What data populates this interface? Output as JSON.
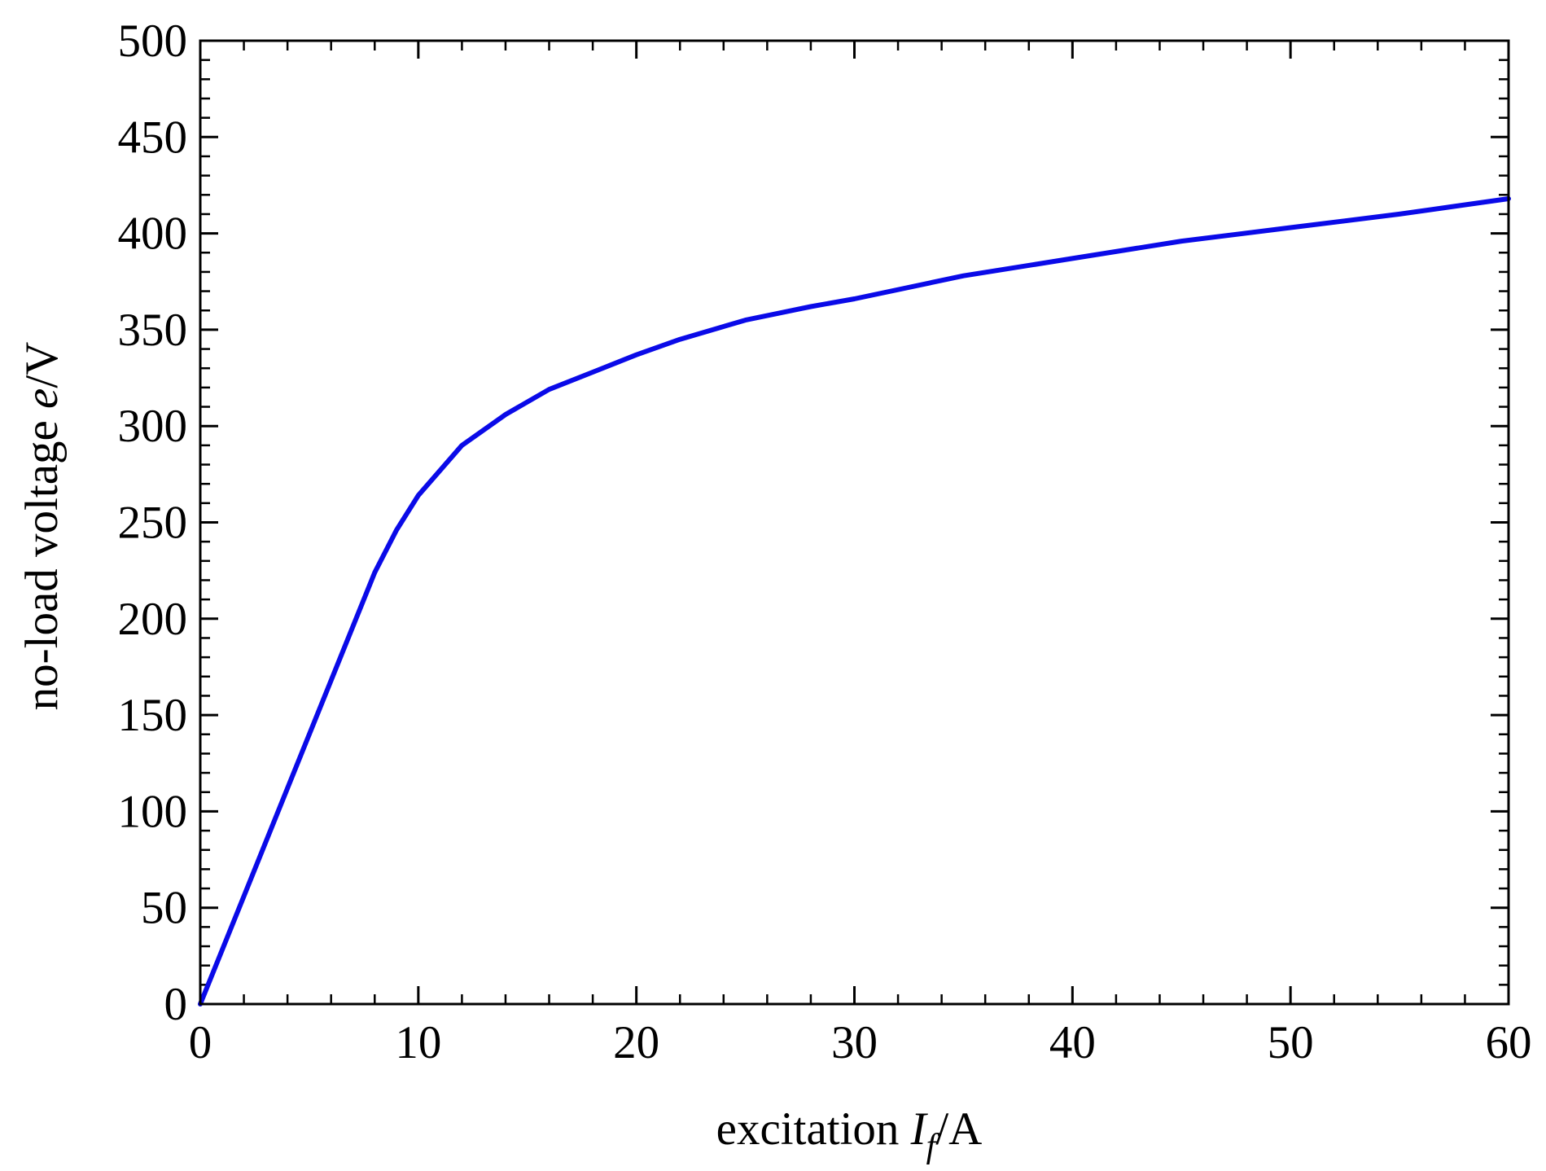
{
  "chart_data": {
    "type": "line",
    "xlabel": {
      "prefix": "excitation ",
      "var": "I",
      "sub": "f",
      "suffix": "/A"
    },
    "ylabel": {
      "prefix": "no-load voltage ",
      "var": "e",
      "suffix": "/V"
    },
    "xlim": [
      0,
      60
    ],
    "ylim": [
      0,
      500
    ],
    "xticks": [
      0,
      10,
      20,
      30,
      40,
      50,
      60
    ],
    "yticks": [
      0,
      50,
      100,
      150,
      200,
      250,
      300,
      350,
      400,
      450,
      500
    ],
    "xminor_step": 2,
    "yminor_step": 10,
    "grid": false,
    "legend": "none",
    "series": [
      {
        "color": "#0a0ae8",
        "x": [
          0,
          2,
          4,
          6,
          8,
          9,
          10,
          12,
          14,
          16,
          18,
          20,
          22,
          25,
          28,
          30,
          35,
          40,
          45,
          50,
          55,
          60
        ],
        "y": [
          0,
          56,
          112,
          168,
          224,
          246,
          264,
          290,
          306,
          319,
          328,
          337,
          345,
          355,
          362,
          366,
          378,
          387,
          396,
          403,
          410,
          418
        ]
      }
    ]
  }
}
